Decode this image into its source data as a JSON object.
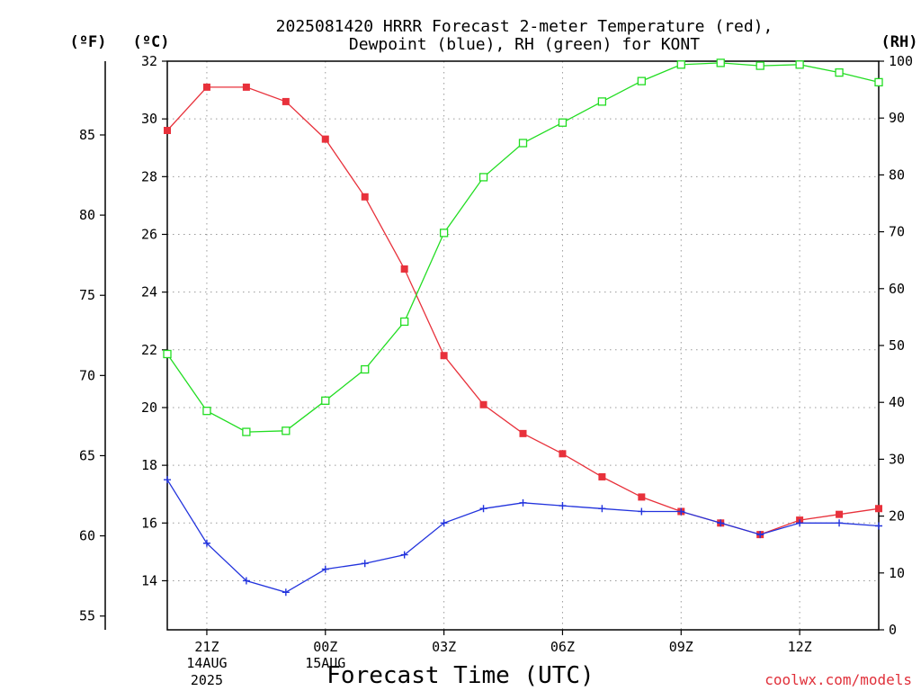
{
  "chart_data": {
    "type": "line",
    "title_lines": [
      "2025081420 HRRR Forecast 2-meter Temperature (red),",
      "Dewpoint (blue), RH (green) for KONT"
    ],
    "units": {
      "fahrenheit": "(ºF)",
      "celsius": "(ºC)",
      "rh": "(RH)"
    },
    "xlabel": "Forecast Time (UTC)",
    "credit": "coolwx.com/models",
    "x": [
      20,
      21,
      22,
      23,
      24,
      25,
      26,
      27,
      28,
      29,
      30,
      31,
      32,
      33,
      34,
      35,
      36,
      37,
      38
    ],
    "x_ticks": [
      {
        "x": 21,
        "label": "21Z",
        "sub": [
          "14AUG",
          "2025"
        ]
      },
      {
        "x": 24,
        "label": "00Z",
        "sub": [
          "15AUG"
        ]
      },
      {
        "x": 27,
        "label": "03Z",
        "sub": []
      },
      {
        "x": 30,
        "label": "06Z",
        "sub": []
      },
      {
        "x": 33,
        "label": "09Z",
        "sub": []
      },
      {
        "x": 36,
        "label": "12Z",
        "sub": []
      }
    ],
    "xlim": [
      20,
      38
    ],
    "y_celsius": {
      "lim": [
        12.3,
        32
      ],
      "ticks": [
        14,
        16,
        18,
        20,
        22,
        24,
        26,
        28,
        30,
        32
      ]
    },
    "y_fahrenheit": {
      "ticks": [
        55,
        60,
        65,
        70,
        75,
        80,
        85
      ]
    },
    "y_rh": {
      "lim": [
        0,
        100
      ],
      "ticks": [
        0,
        10,
        20,
        30,
        40,
        50,
        60,
        70,
        80,
        90,
        100
      ]
    },
    "grid": true,
    "series": [
      {
        "name": "Temperature",
        "color": "#e8313b",
        "marker": "filled-square",
        "axis": "celsius",
        "values": [
          29.6,
          31.1,
          31.1,
          30.6,
          29.3,
          27.3,
          24.8,
          21.8,
          20.1,
          19.1,
          18.4,
          17.6,
          16.9,
          16.4,
          16.0,
          15.6,
          16.1,
          16.3,
          16.5
        ]
      },
      {
        "name": "Dewpoint",
        "color": "#2233dd",
        "marker": "plus",
        "axis": "celsius",
        "values": [
          17.5,
          15.3,
          14.0,
          13.6,
          14.4,
          14.6,
          14.9,
          16.0,
          16.5,
          16.7,
          16.6,
          16.5,
          16.4,
          16.4,
          16.0,
          15.6,
          16.0,
          16.0,
          15.9
        ]
      },
      {
        "name": "RH",
        "color": "#22dd22",
        "marker": "open-square",
        "axis": "rh",
        "values": [
          48.5,
          38.5,
          34.8,
          35.0,
          40.3,
          45.8,
          54.2,
          69.8,
          79.6,
          85.6,
          89.2,
          92.9,
          96.5,
          99.4,
          99.7,
          99.2,
          99.4,
          98.0,
          96.3
        ]
      }
    ]
  }
}
